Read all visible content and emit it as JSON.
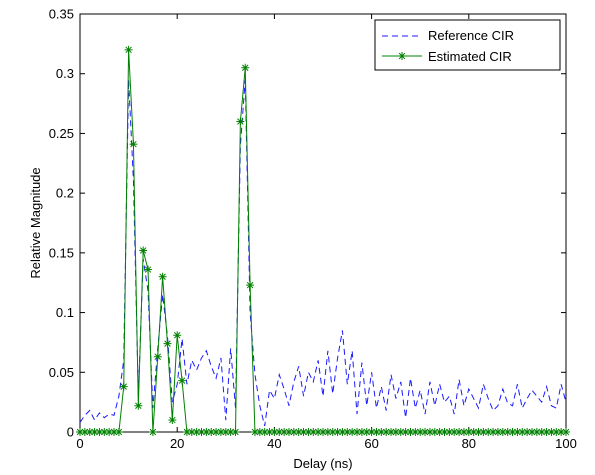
{
  "chart_data": {
    "type": "line",
    "xlabel": "Delay (ns)",
    "ylabel": "Relative Magnitude",
    "xlim": [
      0,
      100
    ],
    "ylim": [
      0,
      0.35
    ],
    "xticks": [
      0,
      20,
      40,
      60,
      80,
      100
    ],
    "yticks": [
      0,
      0.05,
      0.1,
      0.15,
      0.2,
      0.25,
      0.3,
      0.35
    ],
    "xtick_labels": [
      "0",
      "20",
      "40",
      "60",
      "80",
      "100"
    ],
    "ytick_labels": [
      "0",
      "0.05",
      "0.1",
      "0.15",
      "0.2",
      "0.25",
      "0.3",
      "0.35"
    ],
    "grid": false,
    "legend_position": "top-right",
    "series": [
      {
        "name": "Reference CIR",
        "style": "dashed",
        "color": "#1a1aff",
        "x": [
          0,
          1,
          2,
          3,
          4,
          5,
          6,
          7,
          8,
          9,
          10,
          11,
          12,
          13,
          14,
          15,
          16,
          17,
          18,
          19,
          20,
          21,
          22,
          23,
          24,
          25,
          26,
          27,
          28,
          29,
          30,
          31,
          32,
          33,
          34,
          35,
          36,
          37,
          38,
          39,
          40,
          41,
          42,
          43,
          44,
          45,
          46,
          47,
          48,
          49,
          50,
          51,
          52,
          53,
          54,
          55,
          56,
          57,
          58,
          59,
          60,
          61,
          62,
          63,
          64,
          65,
          66,
          67,
          68,
          69,
          70,
          71,
          72,
          73,
          74,
          75,
          76,
          77,
          78,
          79,
          80,
          81,
          82,
          83,
          84,
          85,
          86,
          87,
          88,
          89,
          90,
          91,
          92,
          93,
          94,
          95,
          96,
          97,
          98,
          99,
          100
        ],
        "y": [
          0.008,
          0.014,
          0.018,
          0.01,
          0.016,
          0.012,
          0.015,
          0.014,
          0.03,
          0.06,
          0.295,
          0.21,
          0.03,
          0.145,
          0.118,
          0.02,
          0.07,
          0.115,
          0.08,
          0.025,
          0.04,
          0.078,
          0.04,
          0.06,
          0.052,
          0.062,
          0.068,
          0.055,
          0.045,
          0.062,
          0.01,
          0.07,
          0.02,
          0.24,
          0.295,
          0.1,
          0.048,
          0.022,
          0.005,
          0.035,
          0.028,
          0.048,
          0.036,
          0.022,
          0.042,
          0.055,
          0.03,
          0.05,
          0.042,
          0.06,
          0.03,
          0.068,
          0.032,
          0.062,
          0.085,
          0.04,
          0.068,
          0.015,
          0.058,
          0.022,
          0.05,
          0.02,
          0.038,
          0.018,
          0.048,
          0.028,
          0.042,
          0.012,
          0.045,
          0.02,
          0.035,
          0.015,
          0.042,
          0.022,
          0.04,
          0.025,
          0.03,
          0.015,
          0.044,
          0.022,
          0.036,
          0.028,
          0.02,
          0.04,
          0.028,
          0.018,
          0.022,
          0.036,
          0.024,
          0.022,
          0.04,
          0.02,
          0.028,
          0.035,
          0.03,
          0.025,
          0.038,
          0.022,
          0.02,
          0.04,
          0.025
        ]
      },
      {
        "name": "Estimated CIR",
        "style": "solid",
        "marker": "asterisk",
        "color": "#008000",
        "x": [
          0,
          1,
          2,
          3,
          4,
          5,
          6,
          7,
          8,
          9,
          10,
          11,
          12,
          13,
          14,
          15,
          16,
          17,
          18,
          19,
          20,
          21,
          22,
          23,
          24,
          25,
          26,
          27,
          28,
          29,
          30,
          31,
          32,
          33,
          34,
          35,
          36,
          37,
          38,
          39,
          40,
          41,
          42,
          43,
          44,
          45,
          46,
          47,
          48,
          49,
          50,
          51,
          52,
          53,
          54,
          55,
          56,
          57,
          58,
          59,
          60,
          61,
          62,
          63,
          64,
          65,
          66,
          67,
          68,
          69,
          70,
          71,
          72,
          73,
          74,
          75,
          76,
          77,
          78,
          79,
          80,
          81,
          82,
          83,
          84,
          85,
          86,
          87,
          88,
          89,
          90,
          91,
          92,
          93,
          94,
          95,
          96,
          97,
          98,
          99,
          100
        ],
        "y": [
          0,
          0,
          0,
          0,
          0,
          0,
          0,
          0,
          0,
          0.038,
          0.32,
          0.241,
          0.022,
          0.152,
          0.136,
          0,
          0.063,
          0.13,
          0.074,
          0.01,
          0.081,
          0.043,
          0,
          0,
          0,
          0,
          0,
          0,
          0,
          0,
          0,
          0,
          0,
          0.26,
          0.305,
          0.123,
          0,
          0,
          0,
          0,
          0,
          0,
          0,
          0,
          0,
          0,
          0,
          0,
          0,
          0,
          0,
          0,
          0,
          0,
          0,
          0,
          0,
          0,
          0,
          0,
          0,
          0,
          0,
          0,
          0,
          0,
          0,
          0,
          0,
          0,
          0,
          0,
          0,
          0,
          0,
          0,
          0,
          0,
          0,
          0,
          0,
          0,
          0,
          0,
          0,
          0,
          0,
          0,
          0,
          0,
          0,
          0,
          0,
          0,
          0,
          0,
          0,
          0,
          0,
          0,
          0
        ]
      }
    ]
  }
}
